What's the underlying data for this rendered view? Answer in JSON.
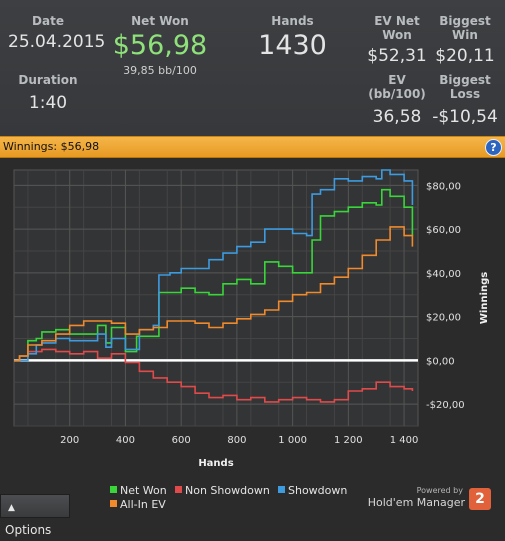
{
  "stats": {
    "date_label": "Date",
    "date_value": "25.04.2015",
    "net_won_label": "Net Won",
    "net_won_value": "$56,98",
    "net_won_bb": "39,85 bb/100",
    "hands_label": "Hands",
    "hands_value": "1430",
    "ev_net_won_label": "EV Net Won",
    "ev_net_won_value": "$52,31",
    "biggest_win_label": "Biggest Win",
    "biggest_win_value": "$20,11",
    "duration_label": "Duration",
    "duration_value": "1:40",
    "ev_bb_label": "EV (bb/100)",
    "ev_bb_value": "36,58",
    "biggest_loss_label": "Biggest Loss",
    "biggest_loss_value": "-$10,54"
  },
  "winnings_bar": {
    "label": "Winnings: $56,98",
    "help_icon": "?"
  },
  "options_label": "Options",
  "brand": {
    "powered_by": "Powered by",
    "name": "Hold'em Manager",
    "logo_text": "2"
  },
  "colors": {
    "net_won": "#39d639",
    "non_showdown": "#e04a4a",
    "showdown": "#3d9be0",
    "all_in_ev": "#f08a2c",
    "zero_line": "#ffffff",
    "accent_bar": "#f0a535"
  },
  "chart_data": {
    "type": "line",
    "xlabel": "Hands",
    "ylabel": "Winnings",
    "xlim": [
      0,
      1450
    ],
    "ylim": [
      -30,
      87
    ],
    "x_ticks": [
      200,
      400,
      600,
      800,
      1000,
      1200,
      1400
    ],
    "x_tick_labels": [
      "200",
      "400",
      "600",
      "800",
      "1 000",
      "1 200",
      "1 400"
    ],
    "y_ticks": [
      80,
      60,
      40,
      20,
      0,
      -20
    ],
    "y_tick_labels": [
      "$80,00",
      "$60,00",
      "$40,00",
      "$20,00",
      "$0,00",
      "-$20,00"
    ],
    "grid": true,
    "legend_position": "bottom",
    "series": [
      {
        "name": "Net Won",
        "color_key": "net_won",
        "x": [
          0,
          20,
          50,
          80,
          100,
          150,
          200,
          250,
          300,
          330,
          350,
          400,
          440,
          500,
          520,
          560,
          600,
          650,
          700,
          750,
          800,
          850,
          900,
          950,
          1000,
          1050,
          1070,
          1100,
          1150,
          1200,
          1250,
          1300,
          1320,
          1350,
          1400,
          1430
        ],
        "y": [
          0,
          2,
          9,
          10,
          13,
          14,
          12,
          12,
          16,
          8,
          15,
          4,
          11,
          11,
          31,
          31,
          33,
          31,
          30,
          35,
          37,
          35,
          45,
          43,
          40,
          40,
          55,
          66,
          68,
          70,
          72,
          71,
          78,
          75,
          70,
          57
        ]
      },
      {
        "name": "Non Showdown",
        "color_key": "non_showdown",
        "x": [
          0,
          20,
          50,
          100,
          150,
          200,
          250,
          300,
          350,
          400,
          450,
          500,
          550,
          600,
          650,
          700,
          750,
          800,
          850,
          900,
          950,
          1000,
          1050,
          1100,
          1150,
          1200,
          1250,
          1300,
          1350,
          1400,
          1430
        ],
        "y": [
          0,
          2,
          4,
          5,
          4,
          3,
          4,
          1,
          3,
          -1,
          -5,
          -8,
          -10,
          -12,
          -15,
          -17,
          -16,
          -18,
          -17,
          -19,
          -18,
          -17,
          -18,
          -19,
          -18,
          -14,
          -13,
          -10,
          -12,
          -13,
          -14
        ]
      },
      {
        "name": "Showdown",
        "color_key": "showdown",
        "x": [
          0,
          20,
          50,
          80,
          100,
          150,
          200,
          250,
          300,
          330,
          350,
          400,
          450,
          500,
          520,
          560,
          600,
          650,
          700,
          750,
          800,
          850,
          900,
          950,
          1000,
          1050,
          1070,
          1100,
          1150,
          1200,
          1250,
          1300,
          1320,
          1350,
          1400,
          1430
        ],
        "y": [
          0,
          0,
          3,
          7,
          8,
          10,
          9,
          9,
          12,
          6,
          10,
          5,
          14,
          16,
          39,
          40,
          42,
          42,
          46,
          49,
          52,
          54,
          60,
          60,
          58,
          57,
          76,
          78,
          83,
          82,
          84,
          83,
          87,
          85,
          82,
          71
        ]
      },
      {
        "name": "All-In EV",
        "color_key": "all_in_ev",
        "x": [
          0,
          20,
          50,
          100,
          150,
          200,
          250,
          300,
          350,
          400,
          450,
          500,
          550,
          600,
          650,
          700,
          750,
          800,
          850,
          900,
          950,
          1000,
          1050,
          1100,
          1150,
          1200,
          1250,
          1300,
          1350,
          1400,
          1430
        ],
        "y": [
          0,
          2,
          7,
          9,
          12,
          16,
          18,
          18,
          17,
          12,
          14,
          15,
          18,
          18,
          17,
          15,
          17,
          19,
          21,
          23,
          27,
          30,
          31,
          35,
          38,
          42,
          48,
          55,
          61,
          57,
          52
        ]
      }
    ]
  }
}
